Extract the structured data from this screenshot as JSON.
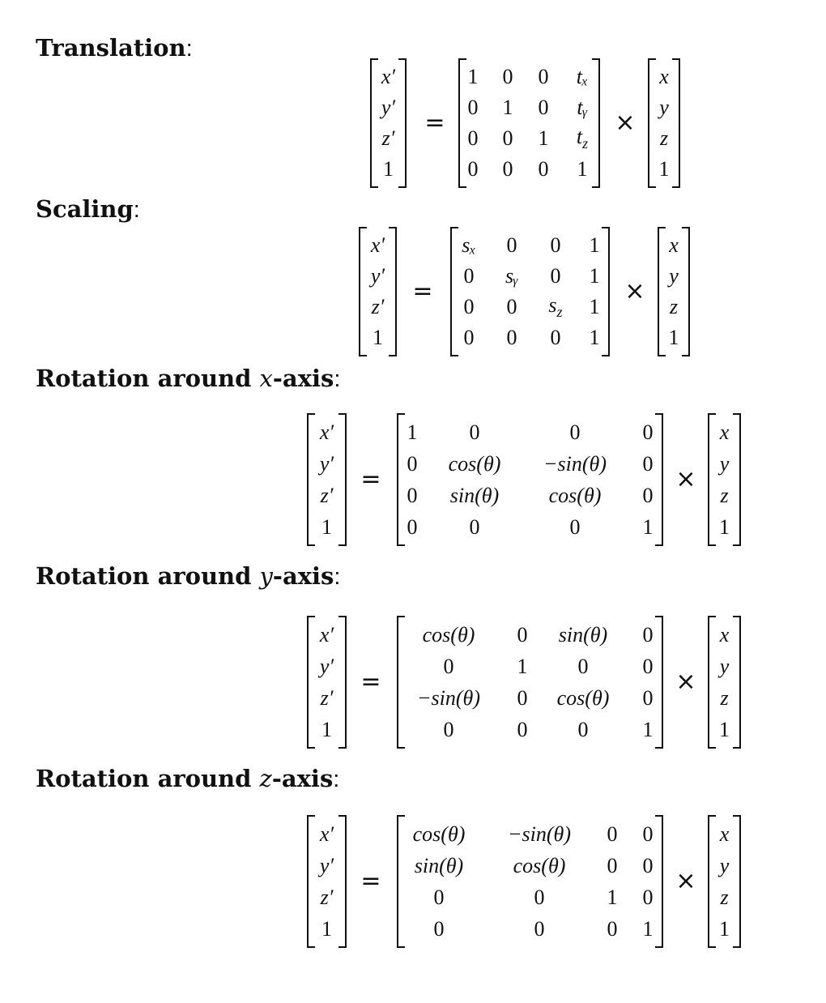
{
  "sections": [
    {
      "label_bold": "Translation",
      "label_var": "",
      "label_bold_suffix": "",
      "colon": ":"
    },
    {
      "label_bold": "Scaling",
      "label_var": "",
      "label_bold_suffix": "",
      "colon": ":"
    },
    {
      "label_bold": "Rotation around ",
      "label_var": "x",
      "label_bold_suffix": "-axis",
      "colon": ":"
    },
    {
      "label_bold": "Rotation around ",
      "label_var": "y",
      "label_bold_suffix": "-axis",
      "colon": ":"
    },
    {
      "label_bold": "Rotation around ",
      "label_var": "z",
      "label_bold_suffix": "-axis",
      "colon": ":"
    }
  ],
  "symbols": {
    "equals": "=",
    "times": "×"
  },
  "prime_vector": [
    "x′",
    "y′",
    "z′",
    "1"
  ],
  "input_vector": [
    "x",
    "y",
    "z",
    "1"
  ],
  "matrices": {
    "translation": [
      [
        "1",
        "0",
        "0",
        "tₓ"
      ],
      [
        "0",
        "1",
        "0",
        "tᵧ"
      ],
      [
        "0",
        "0",
        "1",
        "t_z"
      ],
      [
        "0",
        "0",
        "0",
        "1"
      ]
    ],
    "scaling": [
      [
        "sₓ",
        "0",
        "0",
        "1"
      ],
      [
        "0",
        "sᵧ",
        "0",
        "1"
      ],
      [
        "0",
        "0",
        "s_z",
        "1"
      ],
      [
        "0",
        "0",
        "0",
        "1"
      ]
    ],
    "rot_x": [
      [
        "1",
        "0",
        "0",
        "0"
      ],
      [
        "0",
        "cos(θ)",
        "−sin(θ)",
        "0"
      ],
      [
        "0",
        "sin(θ)",
        "cos(θ)",
        "0"
      ],
      [
        "0",
        "0",
        "0",
        "1"
      ]
    ],
    "rot_y": [
      [
        "cos(θ)",
        "0",
        "sin(θ)",
        "0"
      ],
      [
        "0",
        "1",
        "0",
        "0"
      ],
      [
        "−sin(θ)",
        "0",
        "cos(θ)",
        "0"
      ],
      [
        "0",
        "0",
        "0",
        "1"
      ]
    ],
    "rot_z": [
      [
        "cos(θ)",
        "−sin(θ)",
        "0",
        "0"
      ],
      [
        "sin(θ)",
        "cos(θ)",
        "0",
        "0"
      ],
      [
        "0",
        "0",
        "1",
        "0"
      ],
      [
        "0",
        "0",
        "0",
        "1"
      ]
    ]
  }
}
